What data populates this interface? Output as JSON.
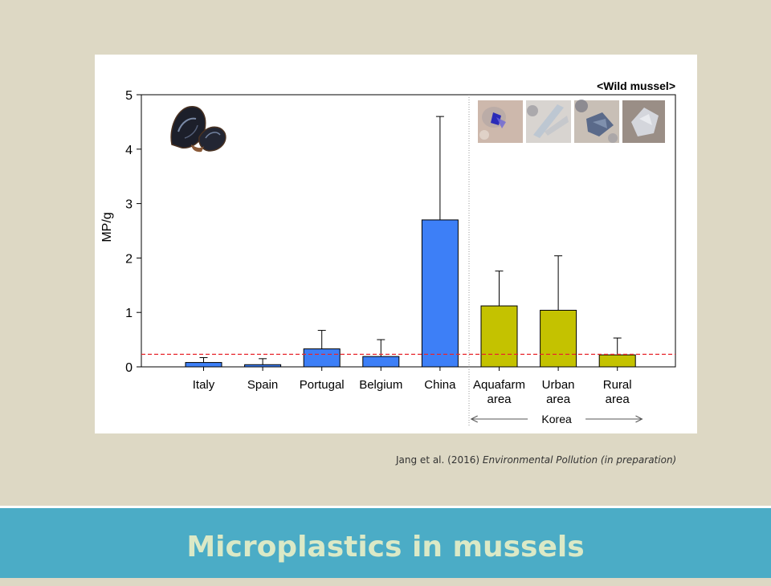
{
  "chart_data": {
    "type": "bar",
    "title": "<Wild mussel>",
    "ylabel": "MP/g",
    "xlabel": "",
    "ylim": [
      0,
      5
    ],
    "yticks": [
      0,
      1,
      2,
      3,
      4,
      5
    ],
    "categories": [
      [
        "Italy"
      ],
      [
        "Spain"
      ],
      [
        "Portugal"
      ],
      [
        "Belgium"
      ],
      [
        "China"
      ],
      [
        "Aquafarm",
        "area"
      ],
      [
        "Urban",
        "area"
      ],
      [
        "Rural",
        "area"
      ]
    ],
    "values": [
      0.08,
      0.04,
      0.33,
      0.19,
      2.7,
      1.12,
      1.04,
      0.22
    ],
    "error_upper": [
      0.17,
      0.15,
      0.67,
      0.5,
      4.6,
      1.76,
      2.04,
      0.53
    ],
    "colors": [
      "#3d7ff7",
      "#3d7ff7",
      "#3d7ff7",
      "#3d7ff7",
      "#3d7ff7",
      "#c4c200",
      "#c4c200",
      "#c4c200"
    ],
    "reference_line": 0.23,
    "reference_color": "#e8262d",
    "group_label": "Korea",
    "group_categories": [
      5,
      6,
      7
    ]
  },
  "citation": {
    "authors": "Jang et al. (2016)",
    "journal": "Environmental Pollution (in preparation)"
  },
  "slide_title": "Microplastics in mussels"
}
